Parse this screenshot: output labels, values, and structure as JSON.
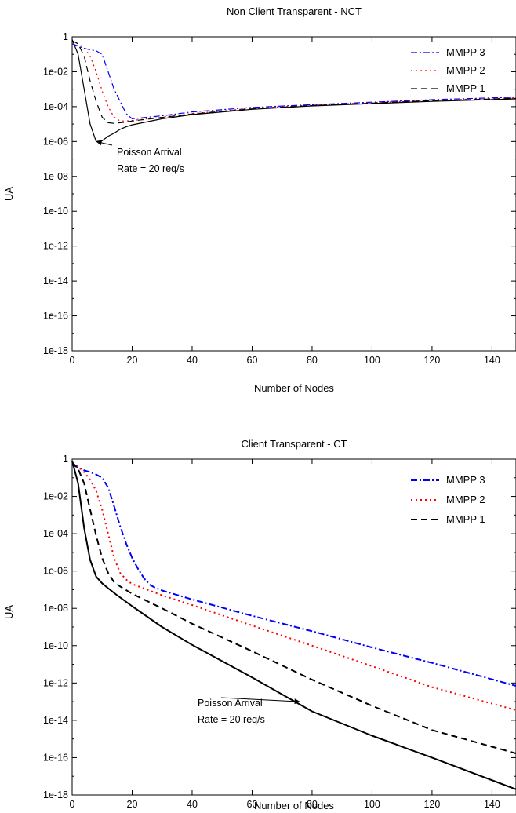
{
  "chart_data": [
    {
      "type": "line",
      "title": "Non Client Transparent - NCT",
      "xlabel": "Number of Nodes",
      "ylabel": "UA",
      "xlim": [
        0,
        148
      ],
      "ylim_log10": [
        -18,
        0
      ],
      "log_y": true,
      "grid": false,
      "legend_position": "top-right",
      "x_ticks": [
        0,
        20,
        40,
        60,
        80,
        100,
        120,
        140
      ],
      "x_tick_labels": [
        "0",
        "20",
        "40",
        "60",
        "80",
        "100",
        "120",
        "140"
      ],
      "y_ticks_log10": [
        0,
        -2,
        -4,
        -6,
        -8,
        -10,
        -12,
        -14,
        -16,
        -18
      ],
      "y_tick_labels": [
        "1",
        "1e-02",
        "1e-04",
        "1e-06",
        "1e-08",
        "1e-10",
        "1e-12",
        "1e-14",
        "1e-16",
        "1e-18"
      ],
      "series": [
        {
          "name": "MMPP 3",
          "color": "#0000ff",
          "dash": "dashdot",
          "x": [
            0,
            2,
            4,
            6,
            8,
            10,
            12,
            14,
            16,
            18,
            20,
            30,
            40,
            60,
            80,
            100,
            120,
            148
          ],
          "y": [
            0.4,
            0.3,
            0.22,
            0.18,
            0.16,
            0.1,
            0.01,
            0.001,
            0.0002,
            4e-05,
            2e-05,
            3e-05,
            5e-05,
            9e-05,
            0.00013,
            0.00018,
            0.00025,
            0.00035
          ]
        },
        {
          "name": "MMPP 2",
          "color": "#ff0000",
          "dash": "dotted",
          "x": [
            0,
            2,
            4,
            6,
            8,
            10,
            12,
            14,
            16,
            18,
            20,
            30,
            40,
            60,
            80,
            100,
            120,
            148
          ],
          "y": [
            0.5,
            0.4,
            0.25,
            0.08,
            0.01,
            0.0008,
            0.0001,
            2.5e-05,
            1.5e-05,
            1.5e-05,
            1.6e-05,
            2.5e-05,
            4e-05,
            8e-05,
            0.00012,
            0.00017,
            0.00023,
            0.00032
          ]
        },
        {
          "name": "MMPP 1",
          "color": "#000000",
          "dash": "dashed",
          "x": [
            0,
            2,
            4,
            6,
            8,
            10,
            12,
            14,
            16,
            18,
            20,
            30,
            40,
            60,
            80,
            100,
            120,
            148
          ],
          "y": [
            0.6,
            0.4,
            0.08,
            0.003,
            0.0002,
            2.5e-05,
            1.2e-05,
            1.1e-05,
            1.2e-05,
            1.3e-05,
            1.5e-05,
            2.4e-05,
            3.8e-05,
            7.5e-05,
            0.000115,
            0.00016,
            0.00022,
            0.0003
          ]
        },
        {
          "name": "Poisson Arrival",
          "color": "#000000",
          "dash": "solid",
          "x": [
            0,
            2,
            4,
            6,
            8,
            10,
            12,
            14,
            16,
            18,
            20,
            30,
            40,
            60,
            80,
            100,
            120,
            148
          ],
          "y": [
            0.7,
            0.1,
            0.001,
            1e-05,
            1e-06,
            1.1e-06,
            2e-06,
            3e-06,
            5e-06,
            7e-06,
            9e-06,
            2e-05,
            3.5e-05,
            7e-05,
            0.00011,
            0.00015,
            0.0002,
            0.00028
          ]
        }
      ],
      "annotation": {
        "lines": [
          "Poisson Arrival",
          "Rate = 20 req/s"
        ],
        "arrow_to": {
          "x": 8,
          "y": 1e-06
        }
      }
    },
    {
      "type": "line",
      "title": "Client Transparent - CT",
      "xlabel": "Number of Nodes",
      "ylabel": "UA",
      "xlim": [
        0,
        148
      ],
      "ylim_log10": [
        -18,
        0
      ],
      "log_y": true,
      "grid": false,
      "legend_position": "top-right",
      "x_ticks": [
        0,
        20,
        40,
        60,
        80,
        100,
        120,
        140
      ],
      "x_tick_labels": [
        "0",
        "20",
        "40",
        "60",
        "80",
        "100",
        "120",
        "140"
      ],
      "y_ticks_log10": [
        0,
        -2,
        -4,
        -6,
        -8,
        -10,
        -12,
        -14,
        -16,
        -18
      ],
      "y_tick_labels": [
        "1",
        "1e-02",
        "1e-04",
        "1e-06",
        "1e-08",
        "1e-10",
        "1e-12",
        "1e-14",
        "1e-16",
        "1e-18"
      ],
      "series": [
        {
          "name": "MMPP 3",
          "color": "#0000ff",
          "dash": "dashdot",
          "x": [
            0,
            2,
            4,
            6,
            8,
            10,
            12,
            14,
            16,
            18,
            20,
            22,
            24,
            26,
            28,
            30,
            40,
            60,
            80,
            100,
            120,
            148
          ],
          "y": [
            0.5,
            0.35,
            0.25,
            0.2,
            0.15,
            0.1,
            0.03,
            0.003,
            0.00025,
            3e-05,
            5e-06,
            1.3e-06,
            4e-07,
            1.8e-07,
            1.2e-07,
            9e-08,
            3e-08,
            4e-09,
            6e-10,
            8e-11,
            1.2e-11,
            7e-13
          ]
        },
        {
          "name": "MMPP 2",
          "color": "#ff0000",
          "dash": "dotted",
          "x": [
            0,
            2,
            4,
            6,
            8,
            10,
            12,
            14,
            16,
            18,
            20,
            25,
            30,
            40,
            60,
            80,
            100,
            120,
            148
          ],
          "y": [
            0.6,
            0.4,
            0.2,
            0.08,
            0.02,
            0.002,
            0.0001,
            5e-06,
            8e-07,
            3.5e-07,
            2e-07,
            1e-07,
            5e-08,
            1.5e-08,
            1.2e-09,
            1e-10,
            8e-12,
            6e-13,
            3.5e-14
          ]
        },
        {
          "name": "MMPP 1",
          "color": "#000000",
          "dash": "dashed",
          "x": [
            0,
            2,
            4,
            6,
            8,
            10,
            12,
            14,
            16,
            20,
            30,
            40,
            60,
            80,
            100,
            120,
            148
          ],
          "y": [
            0.7,
            0.3,
            0.05,
            0.002,
            8e-05,
            5e-06,
            8e-07,
            2.5e-07,
            1.5e-07,
            6e-08,
            1e-08,
            1.5e-09,
            5e-11,
            1.5e-12,
            6e-14,
            3e-15,
            1.7e-16
          ]
        },
        {
          "name": "Poisson Arrival",
          "color": "#000000",
          "dash": "solid",
          "x": [
            0,
            2,
            4,
            6,
            8,
            10,
            12,
            15,
            20,
            30,
            40,
            60,
            80,
            100,
            120,
            148
          ],
          "y": [
            0.8,
            0.05,
            0.0002,
            4e-06,
            5e-07,
            2.2e-07,
            1.2e-07,
            5e-08,
            1.3e-08,
            1e-09,
            1.1e-10,
            2e-12,
            3e-14,
            1.5e-15,
            1e-16,
            2e-18
          ]
        }
      ],
      "annotation": {
        "lines": [
          "Poisson Arrival",
          "Rate = 20 req/s"
        ],
        "arrow_to": {
          "x": 76,
          "y": 1e-13
        }
      }
    }
  ]
}
